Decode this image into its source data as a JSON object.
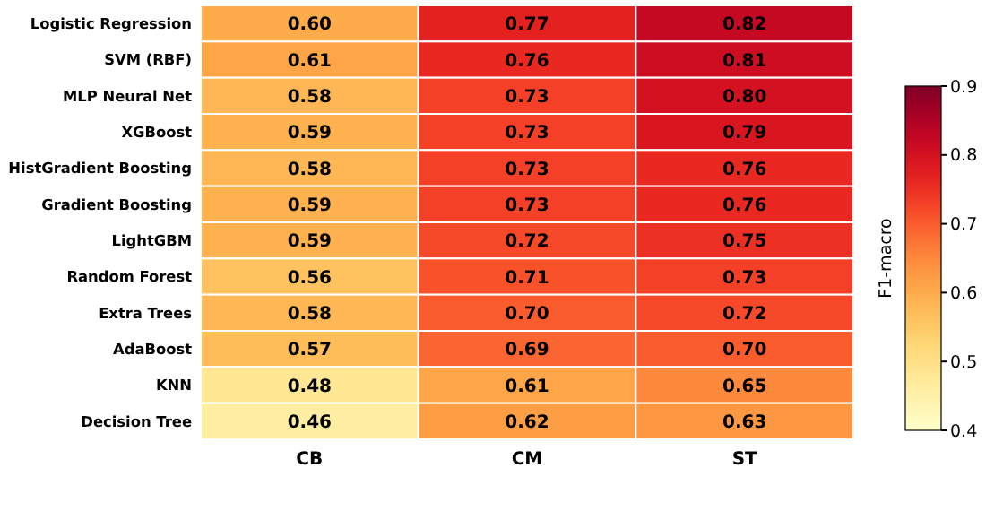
{
  "chart_data": {
    "type": "heatmap",
    "categories": [
      "CB",
      "CM",
      "ST"
    ],
    "y_categories": [
      "Logistic Regression",
      "SVM (RBF)",
      "MLP Neural Net",
      "XGBoost",
      "HistGradient Boosting",
      "Gradient Boosting",
      "LightGBM",
      "Random Forest",
      "Extra Trees",
      "AdaBoost",
      "KNN",
      "Decision Tree"
    ],
    "cells": [
      [
        0.6,
        0.77,
        0.82
      ],
      [
        0.61,
        0.76,
        0.81
      ],
      [
        0.58,
        0.73,
        0.8
      ],
      [
        0.59,
        0.73,
        0.79
      ],
      [
        0.58,
        0.73,
        0.76
      ],
      [
        0.59,
        0.73,
        0.76
      ],
      [
        0.59,
        0.72,
        0.75
      ],
      [
        0.56,
        0.71,
        0.73
      ],
      [
        0.58,
        0.7,
        0.72
      ],
      [
        0.57,
        0.69,
        0.7
      ],
      [
        0.48,
        0.61,
        0.65
      ],
      [
        0.46,
        0.62,
        0.63
      ]
    ],
    "cell_labels": [
      [
        "0.60",
        "0.77",
        "0.82"
      ],
      [
        "0.61",
        "0.76",
        "0.81"
      ],
      [
        "0.58",
        "0.73",
        "0.80"
      ],
      [
        "0.59",
        "0.73",
        "0.79"
      ],
      [
        "0.58",
        "0.73",
        "0.76"
      ],
      [
        "0.59",
        "0.73",
        "0.76"
      ],
      [
        "0.59",
        "0.72",
        "0.75"
      ],
      [
        "0.56",
        "0.71",
        "0.73"
      ],
      [
        "0.58",
        "0.70",
        "0.72"
      ],
      [
        "0.57",
        "0.69",
        "0.70"
      ],
      [
        "0.48",
        "0.61",
        "0.65"
      ],
      [
        "0.46",
        "0.62",
        "0.63"
      ]
    ],
    "clabel": "F1-macro",
    "clim": [
      0.4,
      0.9
    ],
    "cticks": [
      0.4,
      0.5,
      0.6,
      0.7,
      0.8,
      0.9
    ]
  }
}
